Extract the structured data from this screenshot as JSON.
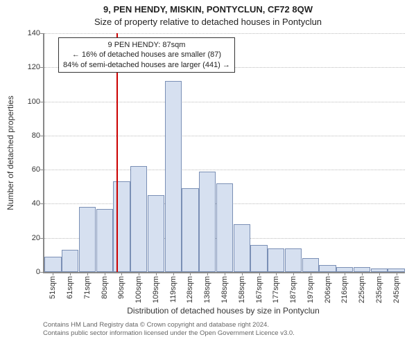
{
  "header": {
    "address_line": "9, PEN HENDY, MISKIN, PONTYCLUN, CF72 8QW",
    "subtitle": "Size of property relative to detached houses in Pontyclun"
  },
  "chart": {
    "type": "histogram",
    "ylabel": "Number of detached properties",
    "xlabel": "Distribution of detached houses by size in Pontyclun",
    "ylim": [
      0,
      140
    ],
    "ytick_step": 20,
    "yticks": [
      0,
      20,
      40,
      60,
      80,
      100,
      120,
      140
    ],
    "x_categories": [
      "51sqm",
      "61sqm",
      "71sqm",
      "80sqm",
      "90sqm",
      "100sqm",
      "109sqm",
      "119sqm",
      "128sqm",
      "138sqm",
      "148sqm",
      "158sqm",
      "167sqm",
      "177sqm",
      "187sqm",
      "197sqm",
      "206sqm",
      "216sqm",
      "225sqm",
      "235sqm",
      "245sqm"
    ],
    "values": [
      9,
      13,
      38,
      37,
      53,
      62,
      45,
      112,
      49,
      59,
      52,
      28,
      16,
      14,
      14,
      8,
      4,
      3,
      3,
      2,
      2
    ],
    "bar_fill": "#d6e0f0",
    "bar_border": "#7a8fb5",
    "grid_color": "#bbbbbb",
    "axis_color": "#888888",
    "background_color": "#ffffff",
    "reference": {
      "value_sqm": 87,
      "line_color": "#cc0000",
      "box_lines": [
        "9 PEN HENDY: 87sqm",
        "← 16% of detached houses are smaller (87)",
        "84% of semi-detached houses are larger (441) →"
      ]
    },
    "fontsize_axis": 11,
    "fontsize_label": 12,
    "fontsize_title": 13
  },
  "footer": {
    "line1": "Contains HM Land Registry data © Crown copyright and database right 2024.",
    "line2": "Contains public sector information licensed under the Open Government Licence v3.0."
  }
}
